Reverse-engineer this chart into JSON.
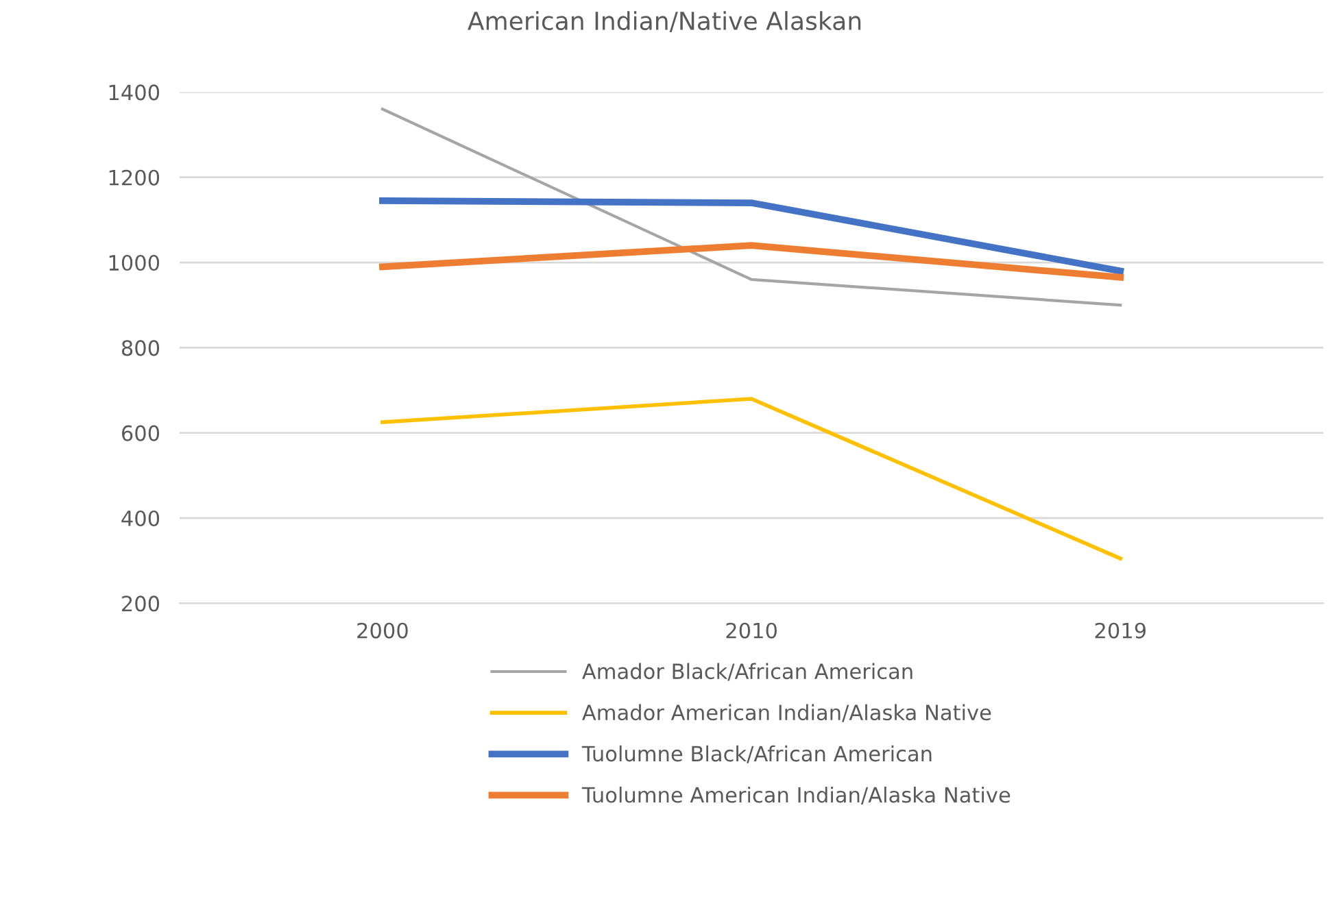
{
  "chart_data": {
    "type": "line",
    "title": "American Indian/Native Alaskan",
    "categories": [
      "2000",
      "2010",
      "2019"
    ],
    "series": [
      {
        "name": "Amador Black/African American",
        "color": "#a5a5a5",
        "values": [
          1360,
          960,
          900
        ]
      },
      {
        "name": "Amador American Indian/Alaska Native",
        "color": "#ffc000",
        "values": [
          625,
          680,
          305
        ]
      },
      {
        "name": "Tuolumne Black/African American",
        "color": "#4472c4",
        "values": [
          1145,
          1140,
          980
        ]
      },
      {
        "name": "Tuolumne American Indian/Alaska Native",
        "color": "#ed7d31",
        "values": [
          990,
          1040,
          965
        ]
      }
    ],
    "ylim": [
      200,
      1400
    ],
    "yticks": [
      200,
      400,
      600,
      800,
      1000,
      1200,
      1400
    ],
    "grid": "y",
    "legend": "bottom",
    "marker": "none",
    "line_style": "solid"
  }
}
